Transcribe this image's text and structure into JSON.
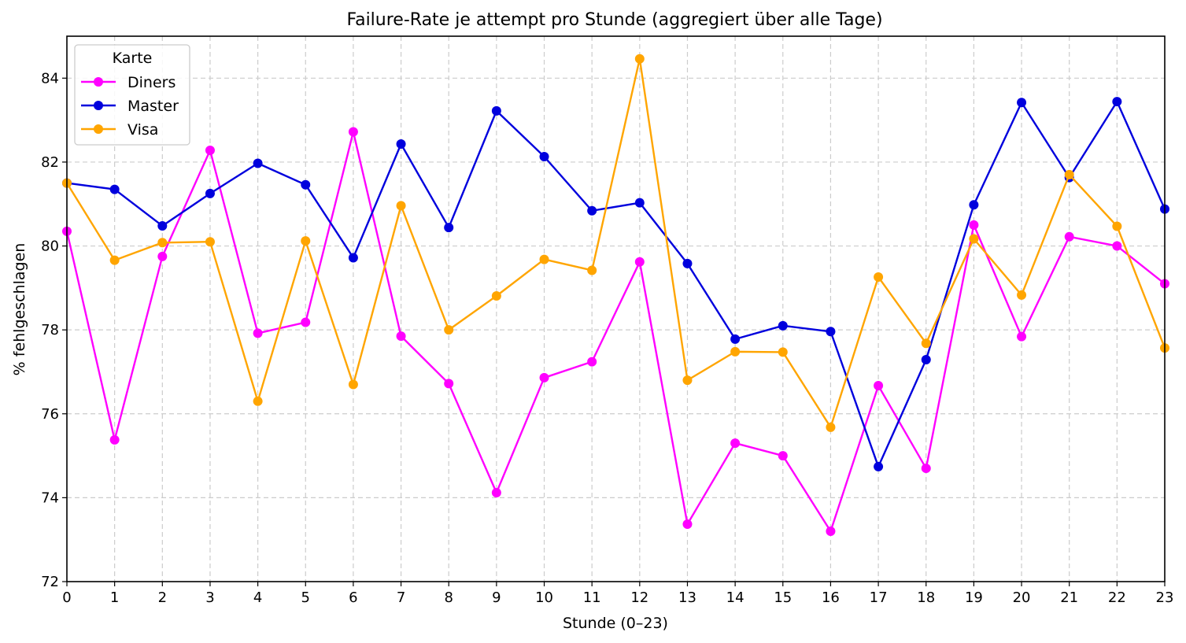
{
  "chart_data": {
    "type": "line",
    "title": "Failure-Rate je attempt pro Stunde (aggregiert über alle Tage)",
    "xlabel": "Stunde (0–23)",
    "ylabel": "% fehlgeschlagen",
    "x": [
      0,
      1,
      2,
      3,
      4,
      5,
      6,
      7,
      8,
      9,
      10,
      11,
      12,
      13,
      14,
      15,
      16,
      17,
      18,
      19,
      20,
      21,
      22,
      23
    ],
    "xlim": [
      0,
      23
    ],
    "ylim": [
      72,
      85
    ],
    "yticks": [
      72,
      74,
      76,
      78,
      80,
      82,
      84
    ],
    "grid": true,
    "legend": {
      "title": "Karte",
      "placement": "top-left"
    },
    "series": [
      {
        "name": "Diners",
        "color": "#ff00ff",
        "values": [
          80.35,
          75.38,
          79.75,
          82.28,
          77.92,
          78.18,
          82.72,
          77.85,
          76.72,
          74.12,
          76.86,
          77.24,
          79.62,
          73.37,
          75.3,
          75.0,
          73.2,
          76.67,
          74.7,
          80.5,
          77.84,
          80.22,
          80.0,
          79.1
        ]
      },
      {
        "name": "Master",
        "color": "#0000dd",
        "values": [
          81.5,
          81.35,
          80.48,
          81.25,
          81.97,
          81.46,
          79.72,
          82.43,
          80.44,
          83.22,
          82.13,
          80.84,
          81.03,
          79.58,
          77.78,
          78.1,
          77.96,
          74.74,
          77.29,
          80.98,
          83.42,
          81.63,
          83.44,
          80.88
        ]
      },
      {
        "name": "Visa",
        "color": "#ffa500",
        "values": [
          81.5,
          79.66,
          80.08,
          80.1,
          76.3,
          80.12,
          76.7,
          80.96,
          78.0,
          78.81,
          79.68,
          79.42,
          84.46,
          76.8,
          77.48,
          77.47,
          75.68,
          79.26,
          77.68,
          80.17,
          78.83,
          81.7,
          80.47,
          77.57
        ]
      }
    ]
  }
}
